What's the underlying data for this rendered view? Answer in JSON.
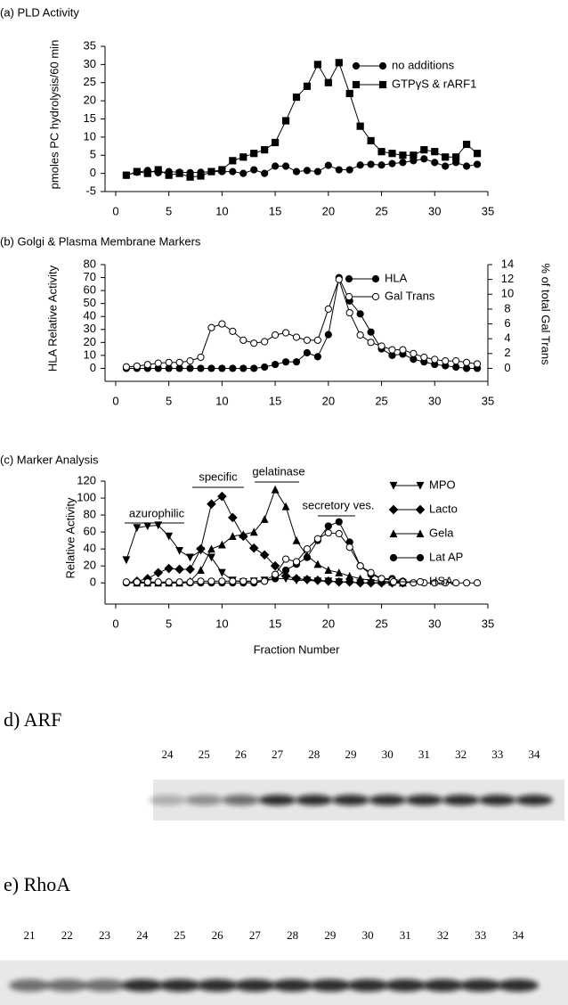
{
  "chart_data": [
    {
      "type": "line",
      "title": "(a) PLD Activity",
      "ylabel": "pmoles PC hydrolysis/60 min",
      "x": [
        1,
        2,
        3,
        4,
        5,
        6,
        7,
        8,
        9,
        10,
        11,
        12,
        13,
        14,
        15,
        16,
        17,
        18,
        19,
        20,
        21,
        22,
        23,
        24,
        25,
        26,
        27,
        28,
        29,
        30,
        31,
        32,
        33,
        34
      ],
      "series": [
        {
          "name": "no additions",
          "color": "#000",
          "marker": "circle",
          "filled": true,
          "values": [
            -0.5,
            0.3,
            0.8,
            0.2,
            0.5,
            0.3,
            0.2,
            0.3,
            0.5,
            0.5,
            0.5,
            0,
            1,
            0,
            2,
            2,
            0.5,
            0.8,
            0.5,
            2.2,
            1,
            1,
            2.3,
            2.5,
            2.3,
            2.7,
            3,
            3.5,
            4,
            3,
            2,
            3,
            2,
            2.5
          ]
        },
        {
          "name": "GTPγS & rARF1",
          "color": "#000",
          "marker": "square",
          "filled": true,
          "values": [
            -0.5,
            0.5,
            0,
            1,
            -0.5,
            0,
            -1,
            -0.7,
            0.5,
            1,
            3.5,
            4.5,
            5.5,
            6.5,
            8.5,
            14.5,
            21,
            24,
            30,
            25,
            30.5,
            22,
            13,
            9,
            6,
            5.5,
            5,
            5,
            6.5,
            6,
            4.5,
            4.5,
            8,
            5.5
          ]
        }
      ],
      "xlim": [
        -1,
        35
      ],
      "xticks": [
        0,
        5,
        10,
        15,
        20,
        25,
        30,
        35
      ],
      "ylim": [
        -5,
        35
      ],
      "yticks": [
        -5,
        0,
        5,
        10,
        15,
        20,
        25,
        30,
        35
      ]
    },
    {
      "type": "line",
      "title": "(b) Golgi & Plasma Membrane Markers",
      "ylabel": "HLA Relative Activity",
      "y2label": "% of total Gal Trans",
      "x": [
        1,
        2,
        3,
        4,
        5,
        6,
        7,
        8,
        9,
        10,
        11,
        12,
        13,
        14,
        15,
        16,
        17,
        18,
        19,
        20,
        21,
        22,
        23,
        24,
        25,
        26,
        27,
        28,
        29,
        30,
        31,
        32,
        33,
        34
      ],
      "series": [
        {
          "name": "HLA",
          "color": "#000",
          "marker": "circle",
          "filled": true,
          "values": [
            0,
            0,
            0,
            0,
            0,
            0,
            0,
            0,
            0,
            0,
            0,
            0,
            0,
            1,
            3,
            5,
            5,
            12,
            9,
            26,
            70,
            52,
            42,
            28,
            15,
            10,
            11,
            7,
            5,
            3,
            2,
            1,
            0,
            0
          ]
        },
        {
          "name": "Gal Trans",
          "color": "#000",
          "marker": "circle",
          "filled": false,
          "axis": "y2",
          "values": [
            0.2,
            0.3,
            0.5,
            0.7,
            0.8,
            0.8,
            1,
            1.5,
            5.5,
            6,
            5,
            3.8,
            3.4,
            3.6,
            4.5,
            4.8,
            4.2,
            3.8,
            3.8,
            8,
            12,
            7.5,
            4.5,
            3.5,
            3,
            2.5,
            2.5,
            2,
            1.5,
            1.2,
            1,
            1,
            0.8,
            0.6
          ]
        }
      ],
      "xlim": [
        -1,
        35
      ],
      "xticks": [
        0,
        5,
        10,
        15,
        20,
        25,
        30,
        35
      ],
      "ylim": [
        -10,
        80
      ],
      "yticks": [
        0,
        10,
        20,
        30,
        40,
        50,
        60,
        70,
        80
      ],
      "y2lim": [
        -1.75,
        14
      ],
      "y2ticks": [
        0,
        2,
        4,
        6,
        8,
        10,
        12,
        14
      ]
    },
    {
      "type": "line",
      "title": "(c) Marker Analysis",
      "ylabel": "Relative Activity",
      "xlabel": "Fraction Number",
      "annotations": [
        "azurophilic",
        "specific",
        "gelatinase",
        "secretory ves."
      ],
      "x": [
        1,
        2,
        3,
        4,
        5,
        6,
        7,
        8,
        9,
        10,
        11,
        12,
        13,
        14,
        15,
        16,
        17,
        18,
        19,
        20,
        21,
        22,
        23,
        24,
        25,
        26,
        27,
        28,
        29,
        30,
        31,
        32,
        33,
        34
      ],
      "series": [
        {
          "name": "MPO",
          "color": "#000",
          "marker": "tri-down",
          "filled": true,
          "values": [
            27,
            65,
            67,
            68,
            55,
            38,
            30,
            38,
            30,
            12,
            3,
            1,
            2,
            3,
            5,
            5,
            3,
            3,
            2,
            2,
            1,
            1,
            0,
            0,
            0,
            0,
            0,
            null,
            null,
            null,
            null,
            null,
            null,
            null
          ]
        },
        {
          "name": "Lacto",
          "color": "#000",
          "marker": "diamond",
          "filled": true,
          "values": [
            null,
            2,
            5,
            12,
            17,
            16,
            16,
            40,
            93,
            102,
            77,
            55,
            41,
            33,
            20,
            8,
            5,
            4,
            3,
            2,
            1,
            1,
            0,
            0,
            0,
            0,
            0,
            null,
            null,
            null,
            null,
            null,
            null,
            null
          ]
        },
        {
          "name": "Gela",
          "color": "#000",
          "marker": "tri-up",
          "filled": true,
          "values": [
            null,
            0,
            0,
            0,
            0,
            0,
            2,
            15,
            40,
            45,
            55,
            57,
            60,
            75,
            110,
            90,
            50,
            32,
            22,
            15,
            12,
            8,
            5,
            3,
            2,
            1,
            0,
            null,
            null,
            null,
            null,
            null,
            null,
            null
          ]
        },
        {
          "name": "Lat AP",
          "color": "#000",
          "marker": "circle",
          "filled": true,
          "values": [
            0,
            0,
            0,
            0,
            0,
            0,
            0,
            0,
            0,
            0,
            0,
            0,
            0,
            2,
            5,
            15,
            22,
            30,
            50,
            67,
            72,
            48,
            20,
            10,
            5,
            5,
            2,
            null,
            null,
            null,
            null,
            null,
            null,
            null
          ]
        },
        {
          "name": "HSA",
          "color": "#000",
          "marker": "circle",
          "filled": false,
          "values": [
            1,
            1,
            1,
            1,
            1,
            1,
            1,
            2,
            2,
            2,
            2,
            2,
            2,
            2,
            10,
            28,
            25,
            40,
            52,
            59,
            58,
            42,
            20,
            12,
            5,
            3,
            1,
            0,
            0,
            0,
            0,
            0,
            0,
            0
          ]
        }
      ],
      "xlim": [
        -1,
        35
      ],
      "xticks": [
        0,
        5,
        10,
        15,
        20,
        25,
        30,
        35
      ],
      "ylim": [
        -25,
        120
      ],
      "yticks": [
        0,
        20,
        40,
        60,
        80,
        100,
        120
      ]
    }
  ],
  "blots": [
    {
      "title": "d) ARF",
      "lanes": [
        24,
        25,
        26,
        27,
        28,
        29,
        30,
        31,
        32,
        33,
        34
      ]
    },
    {
      "title": "e) RhoA",
      "lanes": [
        21,
        22,
        23,
        24,
        25,
        26,
        27,
        28,
        29,
        30,
        31,
        32,
        33,
        34
      ]
    }
  ]
}
